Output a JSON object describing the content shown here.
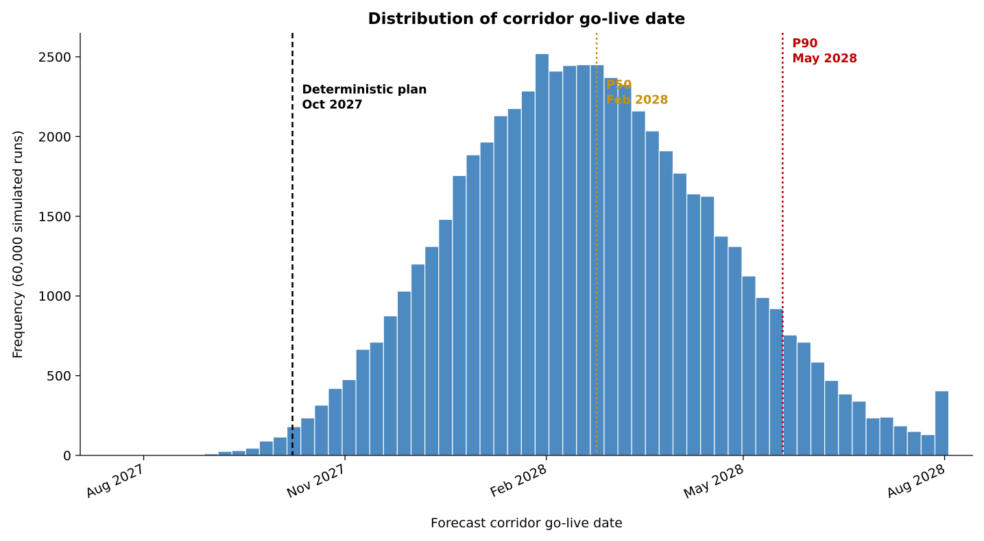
{
  "chart_data": {
    "type": "bar",
    "title": "Distribution of corridor go-live date",
    "xlabel": "Forecast corridor go-live date",
    "ylabel": "Frequency  (60,000 simulated runs)",
    "ylim": [
      0,
      2650
    ],
    "xlim": [
      "2027-07-03",
      "2028-08-14"
    ],
    "y_ticks": [
      0,
      500,
      1000,
      1500,
      2000,
      2500
    ],
    "x_ticks": [
      {
        "date": "2027-08-01",
        "label": "Aug 2027"
      },
      {
        "date": "2027-11-01",
        "label": "Nov 2027"
      },
      {
        "date": "2028-02-01",
        "label": "Feb 2028"
      },
      {
        "date": "2028-05-01",
        "label": "May 2028"
      },
      {
        "date": "2028-08-01",
        "label": "Aug 2028"
      }
    ],
    "bar_color": "#4d8ac2",
    "first_bin_start": "2027-07-03",
    "bin_width_days": 6.3,
    "values": [
      0,
      0,
      0,
      0,
      0,
      0,
      0,
      0,
      5,
      10,
      25,
      30,
      45,
      90,
      115,
      180,
      235,
      315,
      420,
      475,
      665,
      710,
      875,
      1030,
      1200,
      1310,
      1480,
      1755,
      1885,
      1965,
      2130,
      2175,
      2285,
      2520,
      2410,
      2445,
      2450,
      2450,
      2370,
      2325,
      2160,
      2035,
      1910,
      1770,
      1640,
      1625,
      1375,
      1310,
      1125,
      990,
      920,
      755,
      710,
      585,
      470,
      385,
      340,
      235,
      240,
      185,
      150,
      130,
      405
    ],
    "reference_lines": [
      {
        "name": "Deterministic plan",
        "date": "2027-10-08",
        "label_lines": [
          "Deterministic plan",
          "Oct 2027"
        ],
        "color": "#000000",
        "style": "dashed",
        "label_y": 2270
      },
      {
        "name": "P50",
        "date": "2028-02-24",
        "label_lines": [
          "P50",
          "Feb 2028"
        ],
        "color": "#c8900e",
        "style": "dotted",
        "label_y": 2300
      },
      {
        "name": "P90",
        "date": "2028-05-19",
        "label_lines": [
          "P90",
          "May 2028"
        ],
        "color": "#c00000",
        "style": "dotted",
        "label_y": 2560
      }
    ],
    "grid": false,
    "legend": "none"
  }
}
